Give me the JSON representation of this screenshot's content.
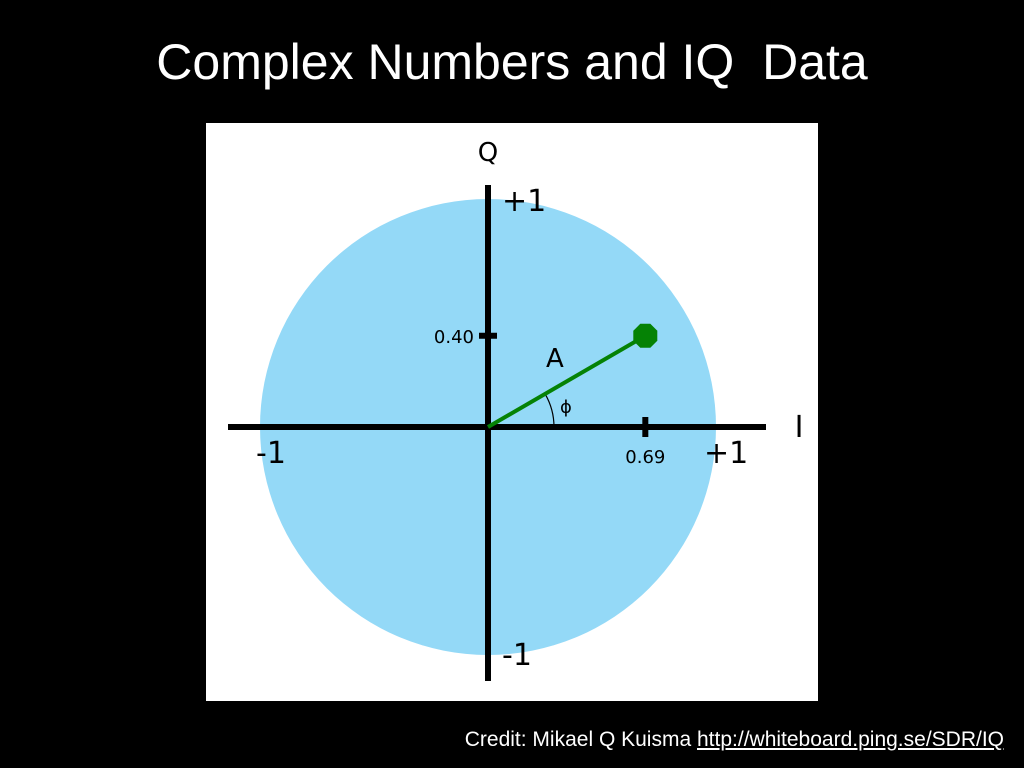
{
  "slide": {
    "title": "Complex Numbers and IQ  Data",
    "credit_text": "Credit: Mikael Q Kuisma",
    "credit_link": "http://whiteboard.ping.se/SDR/IQ"
  },
  "diagram": {
    "q_axis_label": "Q",
    "i_axis_label": "I",
    "q_top_label": "+1",
    "q_bottom_label": "-1",
    "i_left_label": "-1",
    "i_right_label": "+1",
    "point_i": 0.69,
    "point_q": 0.4,
    "i_tick_label": "0.69",
    "q_tick_label": "0.40",
    "vector_label": "A",
    "angle_label": "ϕ",
    "colors": {
      "circle": "#94d9f7",
      "vector": "#058205",
      "axes": "#000000",
      "background": "#ffffff"
    }
  }
}
